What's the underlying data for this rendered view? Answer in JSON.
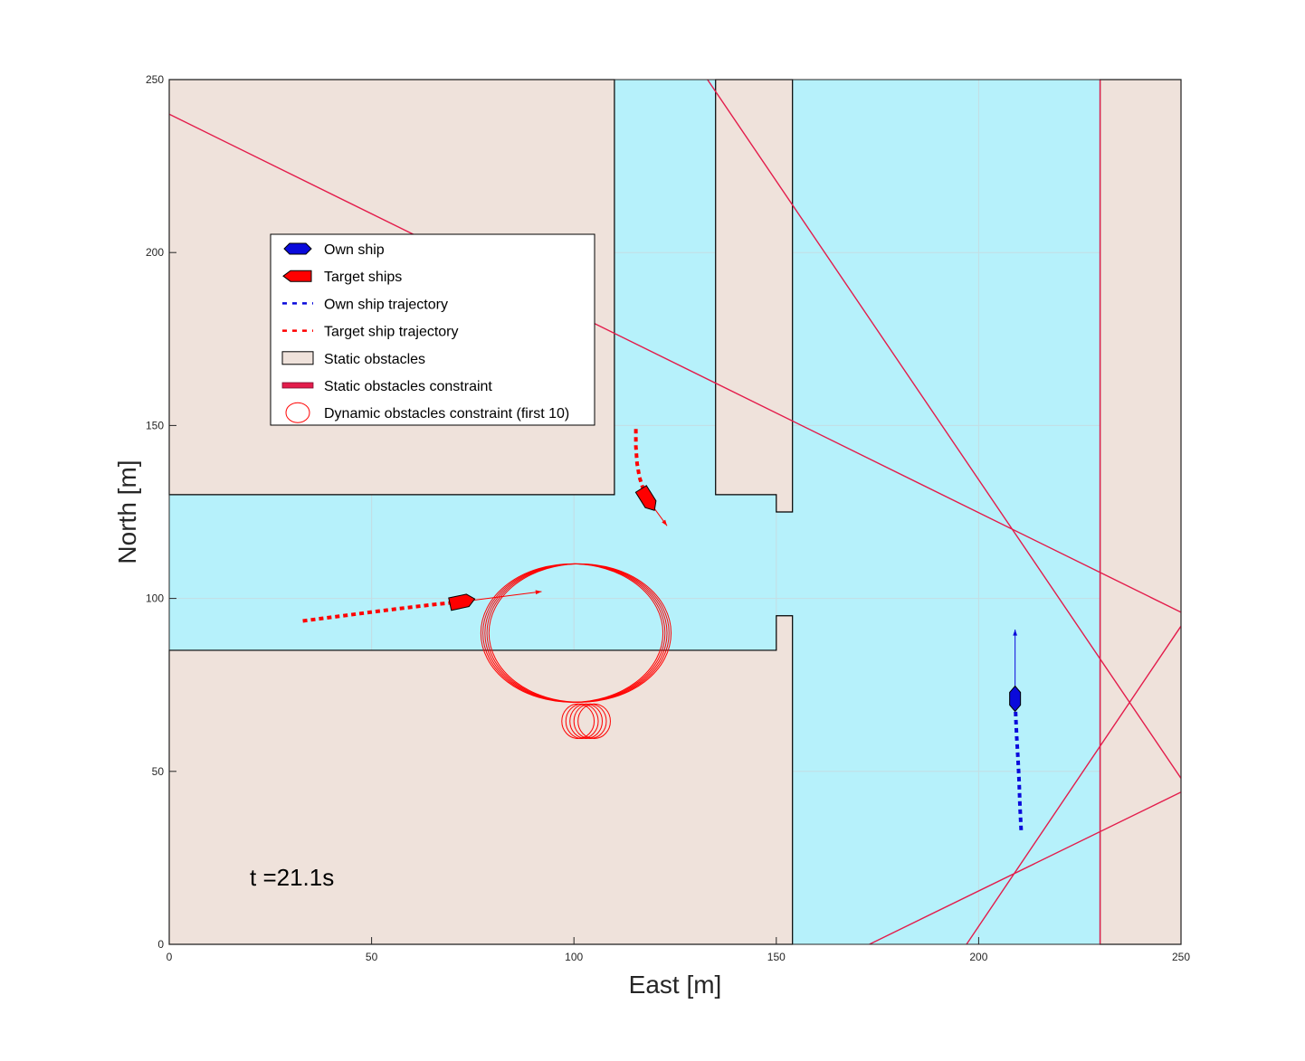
{
  "chart_data": {
    "type": "scatter",
    "xlabel": "East [m]",
    "ylabel": "North [m]",
    "xlim": [
      0,
      250
    ],
    "ylim": [
      0,
      250
    ],
    "x_ticks": [
      "0",
      "50",
      "100",
      "150",
      "200",
      "250"
    ],
    "y_ticks": [
      "0",
      "50",
      "100",
      "150",
      "200",
      "250"
    ],
    "grid": true,
    "annotation": "t =21.1s",
    "legend_position": "upper-left",
    "legend": [
      {
        "label": "Own ship",
        "symbol": "own-ship"
      },
      {
        "label": "Target ships",
        "symbol": "target-ship"
      },
      {
        "label": "Own ship trajectory",
        "symbol": "blue-dash"
      },
      {
        "label": "Target ship trajectory",
        "symbol": "red-dash"
      },
      {
        "label": "Static obstacles",
        "symbol": "obstacle-box"
      },
      {
        "label": "Static obstacles constraint",
        "symbol": "constraint-line"
      },
      {
        "label": "Dynamic obstacles constraint (first 10)",
        "symbol": "circle"
      }
    ],
    "colors": {
      "water": "#b6f1fb",
      "obstacle": "#efe2db",
      "own_ship": "#0a0adb",
      "target_ship": "#ff0000",
      "constraint": "#e31c4b",
      "grid": "#c4dde3"
    },
    "static_obstacles": [
      [
        [
          0,
          130
        ],
        [
          110,
          130
        ],
        [
          110,
          250
        ],
        [
          0,
          250
        ]
      ],
      [
        [
          0,
          0
        ],
        [
          154,
          0
        ],
        [
          154,
          95
        ],
        [
          150,
          95
        ],
        [
          150,
          85
        ],
        [
          0,
          85
        ]
      ],
      [
        [
          135,
          130
        ],
        [
          150,
          130
        ],
        [
          150,
          125
        ],
        [
          154,
          125
        ],
        [
          154,
          250
        ],
        [
          135,
          250
        ]
      ],
      [
        [
          230,
          0
        ],
        [
          250,
          0
        ],
        [
          250,
          250
        ],
        [
          230,
          250
        ]
      ]
    ],
    "constraint_lines": [
      [
        [
          0,
          240
        ],
        [
          250,
          96
        ]
      ],
      [
        [
          133,
          250
        ],
        [
          250,
          48
        ]
      ],
      [
        [
          230,
          0
        ],
        [
          230,
          250
        ]
      ],
      [
        [
          197,
          0
        ],
        [
          250,
          92
        ]
      ],
      [
        [
          173,
          0
        ],
        [
          250,
          44
        ]
      ]
    ],
    "own_ship": {
      "x": 209,
      "y": 71,
      "heading_deg": 0,
      "velocity_tip": [
        209,
        91
      ]
    },
    "own_ship_trajectory": {
      "x": [
        210.5,
        210.2,
        210,
        209.7,
        209.4,
        209.2,
        209
      ],
      "y": [
        33,
        40,
        47,
        54,
        60,
        65,
        71
      ]
    },
    "target_ships": [
      {
        "x": 72,
        "y": 99,
        "heading_deg": 78,
        "velocity_tip": [
          92,
          102
        ]
      },
      {
        "x": 118,
        "y": 129,
        "heading_deg": 148,
        "velocity_tip": [
          123,
          121
        ]
      }
    ],
    "target_trajectories": [
      {
        "x": [
          33,
          45,
          55,
          65,
          72
        ],
        "y": [
          93.5,
          95.3,
          96.8,
          98.2,
          99
        ]
      },
      {
        "x": [
          115.3,
          115.3,
          115.6,
          116.2,
          117,
          118
        ],
        "y": [
          149,
          144,
          139,
          135,
          132,
          129
        ]
      }
    ],
    "dynamic_constraints_large": {
      "centers_x": [
        99.5,
        100,
        100.5,
        101,
        101.5
      ],
      "center_y": 90,
      "rx": 22.5,
      "ry": 20
    },
    "dynamic_constraints_small": {
      "centers_x": [
        101,
        102,
        103,
        104,
        105
      ],
      "center_y": 64.5,
      "rx": 4,
      "ry": 5
    }
  }
}
